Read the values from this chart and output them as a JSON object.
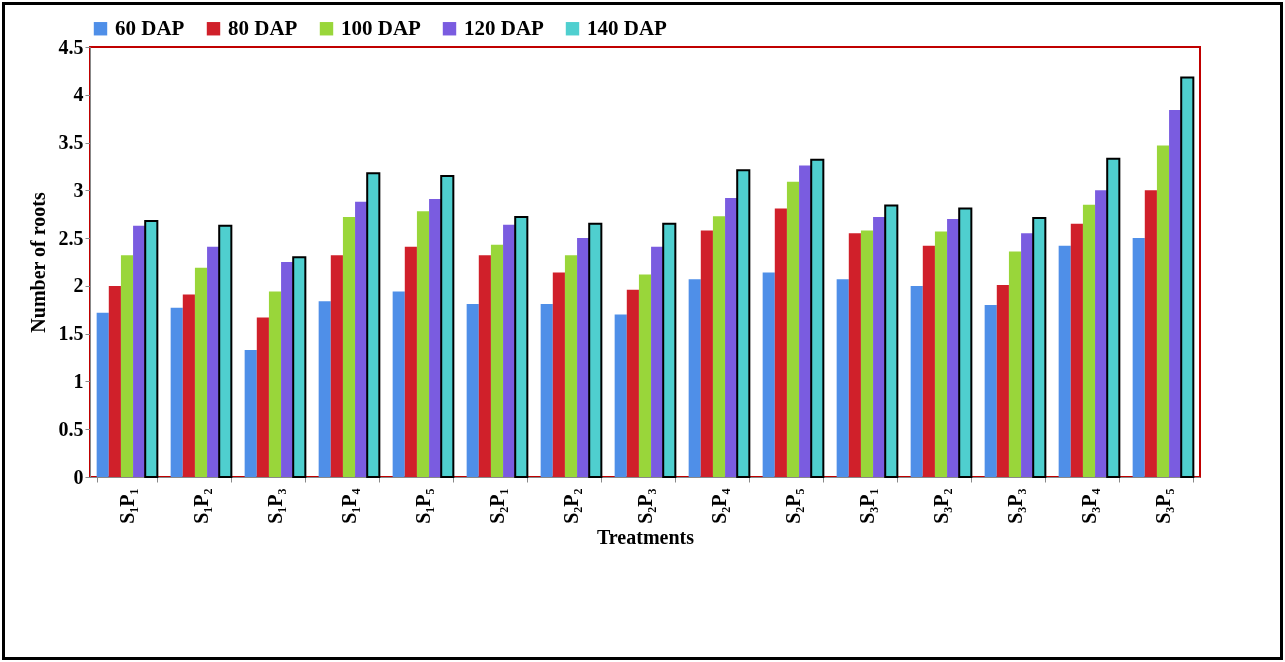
{
  "chart_data": {
    "type": "bar",
    "xlabel": "Treatments",
    "ylabel": "Number of roots",
    "categories": [
      "S₁P₁",
      "S₁P₂",
      "S₁P₃",
      "S₁P₄",
      "S₁P₅",
      "S₂P₁",
      "S₂P₂",
      "S₂P₃",
      "S₂P₄",
      "S₂P₅",
      "S₃P₁",
      "S₃P₂",
      "S₃P₃",
      "S₃P₄",
      "S₃P₅"
    ],
    "series": [
      {
        "name": "60 DAP",
        "color": "#4f8fe8",
        "values": [
          1.72,
          1.77,
          1.33,
          1.84,
          1.94,
          1.81,
          1.81,
          1.7,
          2.07,
          2.14,
          2.07,
          2.0,
          1.8,
          2.42,
          2.5
        ]
      },
      {
        "name": "80 DAP",
        "color": "#d0202a",
        "values": [
          2.0,
          1.91,
          1.67,
          2.32,
          2.41,
          2.32,
          2.14,
          1.96,
          2.58,
          2.81,
          2.55,
          2.42,
          2.01,
          2.65,
          3.0
        ]
      },
      {
        "name": "100 DAP",
        "color": "#99d63a",
        "values": [
          2.32,
          2.19,
          1.94,
          2.72,
          2.78,
          2.43,
          2.32,
          2.12,
          2.73,
          3.09,
          2.58,
          2.57,
          2.36,
          2.85,
          3.47
        ]
      },
      {
        "name": "120 DAP",
        "color": "#7a5ce0",
        "values": [
          2.63,
          2.41,
          2.25,
          2.88,
          2.91,
          2.64,
          2.5,
          2.41,
          2.92,
          3.26,
          2.72,
          2.7,
          2.55,
          3.0,
          3.84
        ]
      },
      {
        "name": "140 DAP",
        "color": "#4fcfcf",
        "values": [
          2.68,
          2.63,
          2.3,
          3.18,
          3.15,
          2.72,
          2.65,
          2.65,
          3.21,
          3.32,
          2.84,
          2.81,
          2.71,
          3.33,
          4.18
        ]
      }
    ],
    "ylim": [
      0,
      4.5
    ],
    "yticks": [
      0,
      0.5,
      1,
      1.5,
      2,
      2.5,
      3,
      3.5,
      4,
      4.5
    ],
    "grid": false,
    "legend": "top"
  }
}
